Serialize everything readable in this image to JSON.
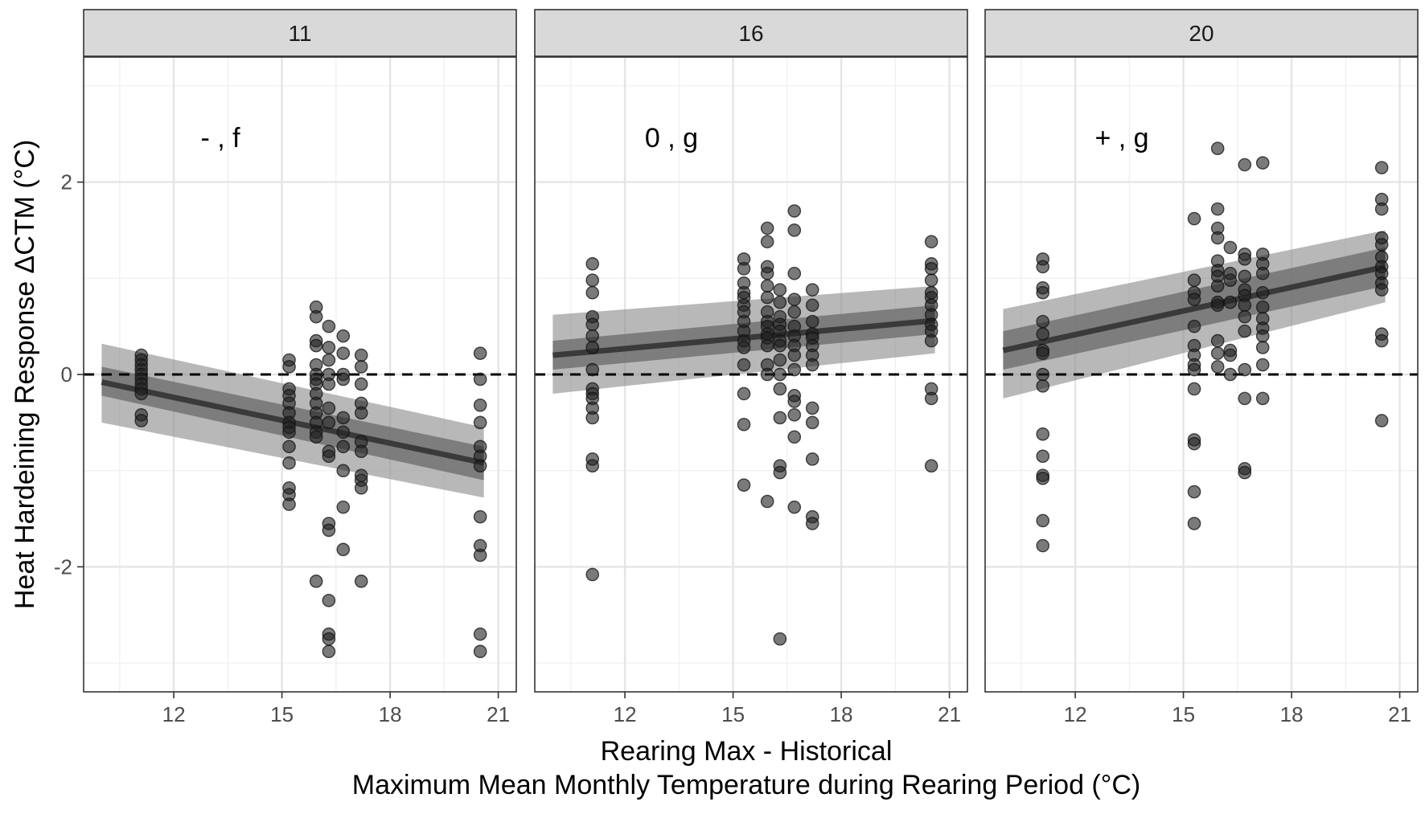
{
  "chart_data": {
    "type": "scatter",
    "title": "",
    "ylabel": "Heat Hardeining Response ΔCTM (°C)",
    "xlabel_line1": "Rearing Max - Historical",
    "xlabel_line2": "Maximum Mean Monthly Temperature during Rearing Period (°C)",
    "xlim": [
      9.5,
      21.5
    ],
    "ylim": [
      -3.3,
      3.3
    ],
    "x_ticks": [
      12,
      15,
      18,
      21
    ],
    "x_tick_labels": [
      "12",
      "15",
      "18",
      "21"
    ],
    "y_ticks": [
      -2,
      0,
      2
    ],
    "y_tick_labels": [
      "-2",
      "0",
      "2"
    ],
    "reference_line_y": 0,
    "grid": true,
    "panels": [
      {
        "strip_label": "11",
        "annotation": "- , f",
        "trend": {
          "x_start": 10.0,
          "y_start": -0.08,
          "x_end": 20.6,
          "y_end": -0.92
        },
        "band_inner": {
          "lower_start": -0.22,
          "upper_start": 0.08,
          "lower_end": -1.1,
          "upper_end": -0.75
        },
        "band_outer": {
          "lower_start": -0.5,
          "upper_start": 0.32,
          "lower_end": -1.28,
          "upper_end": -0.55
        },
        "points": [
          {
            "x": 11.1,
            "y": [
              0.2,
              0.15,
              0.1,
              0.05,
              0.0,
              -0.05,
              -0.1,
              -0.15,
              -0.2,
              -0.42,
              -0.48
            ]
          },
          {
            "x": 15.2,
            "y": [
              0.15,
              0.08,
              -0.15,
              -0.22,
              -0.3,
              -0.4,
              -0.5,
              -0.55,
              -0.6,
              -0.75,
              -0.92,
              -1.18,
              -1.25,
              -1.35
            ]
          },
          {
            "x": 15.95,
            "y": [
              0.7,
              0.6,
              0.35,
              0.3,
              0.1,
              0.0,
              -0.05,
              -0.1,
              -0.2,
              -0.3,
              -0.4,
              -0.5,
              -0.6,
              -0.65,
              -2.15
            ]
          },
          {
            "x": 16.3,
            "y": [
              0.5,
              0.28,
              0.15,
              0.0,
              -0.1,
              -0.35,
              -0.5,
              -0.8,
              -0.85,
              -1.55,
              -1.62,
              -2.35,
              -2.7,
              -2.75,
              -2.88
            ]
          },
          {
            "x": 16.7,
            "y": [
              0.4,
              0.22,
              0.0,
              -0.05,
              -0.45,
              -0.6,
              -0.75,
              -1.0,
              -1.38,
              -1.82
            ]
          },
          {
            "x": 17.2,
            "y": [
              0.2,
              0.08,
              -0.1,
              -0.3,
              -0.4,
              -0.7,
              -0.8,
              -1.05,
              -1.1,
              -1.18,
              -2.15
            ]
          },
          {
            "x": 20.5,
            "y": [
              0.22,
              -0.05,
              -0.32,
              -0.5,
              -0.75,
              -0.85,
              -0.95,
              -1.48,
              -1.78,
              -1.88,
              -2.7,
              -2.88
            ]
          }
        ]
      },
      {
        "strip_label": "16",
        "annotation": "0 , g",
        "trend": {
          "x_start": 10.0,
          "y_start": 0.2,
          "x_end": 20.6,
          "y_end": 0.56
        },
        "band_inner": {
          "lower_start": 0.05,
          "upper_start": 0.35,
          "lower_end": 0.42,
          "upper_end": 0.72
        },
        "band_outer": {
          "lower_start": -0.2,
          "upper_start": 0.62,
          "lower_end": 0.22,
          "upper_end": 0.92
        },
        "points": [
          {
            "x": 11.1,
            "y": [
              1.15,
              0.98,
              0.85,
              0.6,
              0.52,
              0.4,
              0.28,
              0.05,
              -0.15,
              -0.2,
              -0.25,
              -0.35,
              -0.45,
              -0.88,
              -0.95,
              -2.08
            ]
          },
          {
            "x": 15.3,
            "y": [
              1.2,
              1.1,
              0.95,
              0.85,
              0.8,
              0.72,
              0.65,
              0.55,
              0.45,
              0.35,
              0.28,
              0.1,
              -0.2,
              -0.52,
              -1.15
            ]
          },
          {
            "x": 15.95,
            "y": [
              1.52,
              1.38,
              1.12,
              1.05,
              0.92,
              0.8,
              0.65,
              0.55,
              0.5,
              0.42,
              0.38,
              0.3,
              0.1,
              0.0,
              -1.32
            ]
          },
          {
            "x": 16.3,
            "y": [
              0.88,
              0.75,
              0.6,
              0.52,
              0.45,
              0.35,
              0.3,
              0.15,
              0.0,
              -0.15,
              -0.45,
              -0.95,
              -1.02,
              -2.75
            ]
          },
          {
            "x": 16.7,
            "y": [
              1.7,
              1.5,
              1.05,
              0.78,
              0.65,
              0.5,
              0.4,
              0.3,
              0.2,
              0.05,
              -0.22,
              -0.28,
              -0.42,
              -0.65,
              -1.38
            ]
          },
          {
            "x": 17.2,
            "y": [
              0.88,
              0.72,
              0.55,
              0.42,
              0.38,
              0.3,
              0.2,
              0.1,
              -0.35,
              -0.5,
              -0.88,
              -1.48,
              -1.55
            ]
          },
          {
            "x": 20.5,
            "y": [
              1.38,
              1.15,
              1.1,
              0.98,
              0.85,
              0.8,
              0.72,
              0.62,
              0.52,
              0.45,
              0.35,
              -0.15,
              -0.25,
              -0.95
            ]
          }
        ]
      },
      {
        "strip_label": "20",
        "annotation": "+ , g",
        "trend": {
          "x_start": 10.0,
          "y_start": 0.25,
          "x_end": 20.6,
          "y_end": 1.12
        },
        "band_inner": {
          "lower_start": 0.05,
          "upper_start": 0.45,
          "lower_end": 0.92,
          "upper_end": 1.32
        },
        "band_outer": {
          "lower_start": -0.25,
          "upper_start": 0.68,
          "lower_end": 0.75,
          "upper_end": 1.5
        },
        "points": [
          {
            "x": 11.1,
            "y": [
              1.2,
              1.12,
              0.9,
              0.85,
              0.55,
              0.42,
              0.25,
              0.22,
              0.0,
              -0.12,
              -0.62,
              -0.85,
              -1.05,
              -1.08,
              -1.52,
              -1.78
            ]
          },
          {
            "x": 15.3,
            "y": [
              1.62,
              0.98,
              0.85,
              0.78,
              0.5,
              0.3,
              0.2,
              0.1,
              0.05,
              -0.15,
              -0.68,
              -0.72,
              -1.22,
              -1.55
            ]
          },
          {
            "x": 15.95,
            "y": [
              2.35,
              1.72,
              1.52,
              1.42,
              1.18,
              1.08,
              1.02,
              0.92,
              0.75,
              0.72,
              0.35,
              0.22,
              0.08
            ]
          },
          {
            "x": 16.3,
            "y": [
              1.32,
              1.05,
              0.98,
              0.75,
              0.25,
              0.2,
              0.0
            ]
          },
          {
            "x": 16.7,
            "y": [
              2.18,
              1.25,
              1.2,
              1.02,
              0.88,
              0.82,
              0.72,
              0.6,
              0.45,
              0.05,
              -0.25,
              -0.98,
              -1.02
            ]
          },
          {
            "x": 17.2,
            "y": [
              2.2,
              1.25,
              1.15,
              1.05,
              0.85,
              0.7,
              0.58,
              0.48,
              0.4,
              0.28,
              0.1,
              -0.25
            ]
          },
          {
            "x": 20.5,
            "y": [
              2.15,
              1.82,
              1.72,
              1.42,
              1.35,
              1.22,
              1.12,
              1.05,
              0.95,
              0.88,
              0.42,
              0.35,
              -0.48
            ]
          }
        ]
      }
    ]
  }
}
